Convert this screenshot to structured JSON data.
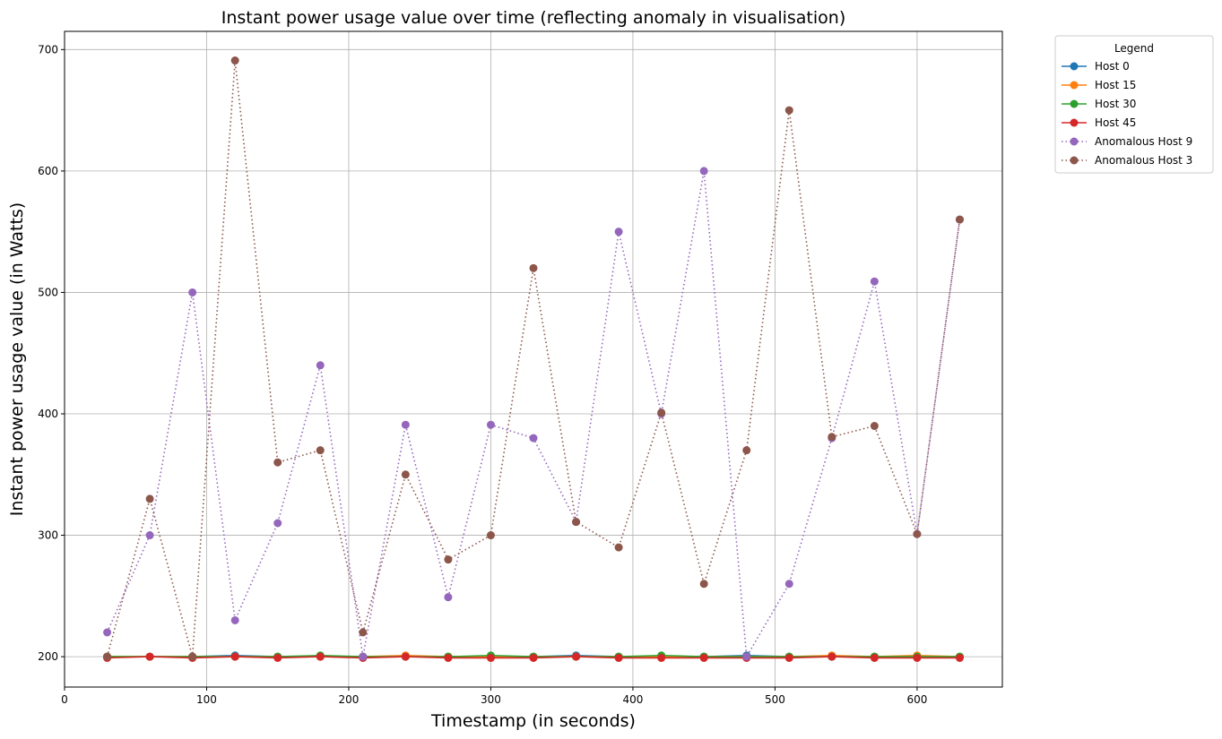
{
  "chart_data": {
    "type": "line",
    "title": "Instant power usage value over time (reflecting anomaly in visualisation)",
    "xlabel": "Timestamp (in seconds)",
    "ylabel": "Instant power usage value (in Watts)",
    "xlim": [
      0,
      660
    ],
    "ylim": [
      175,
      715
    ],
    "xticks": [
      0,
      100,
      200,
      300,
      400,
      500,
      600
    ],
    "yticks": [
      200,
      300,
      400,
      500,
      600,
      700
    ],
    "grid": true,
    "legend_title": "Legend",
    "legend_position": "outside-top-right",
    "x": [
      30,
      60,
      90,
      120,
      150,
      180,
      210,
      240,
      270,
      300,
      330,
      360,
      390,
      420,
      450,
      480,
      510,
      540,
      570,
      600,
      630
    ],
    "series": [
      {
        "name": "Host 0",
        "color": "#1f77b4",
        "style": "solid",
        "values": [
          200,
          200,
          200,
          201,
          200,
          200,
          200,
          200,
          200,
          200,
          200,
          201,
          200,
          200,
          200,
          201,
          200,
          200,
          200,
          200,
          200
        ]
      },
      {
        "name": "Host 15",
        "color": "#ff7f0e",
        "style": "solid",
        "values": [
          200,
          200,
          200,
          200,
          200,
          200,
          200,
          201,
          200,
          200,
          200,
          200,
          200,
          200,
          200,
          200,
          200,
          201,
          200,
          201,
          200
        ]
      },
      {
        "name": "Host 30",
        "color": "#2ca02c",
        "style": "solid",
        "values": [
          200,
          200,
          200,
          200,
          200,
          201,
          200,
          200,
          200,
          201,
          200,
          200,
          200,
          201,
          200,
          200,
          200,
          200,
          200,
          200,
          200
        ]
      },
      {
        "name": "Host 45",
        "color": "#d62728",
        "style": "solid",
        "values": [
          199,
          200,
          199,
          200,
          199,
          200,
          199,
          200,
          199,
          199,
          199,
          200,
          199,
          199,
          199,
          199,
          199,
          200,
          199,
          199,
          199
        ]
      },
      {
        "name": "Anomalous Host 9",
        "color": "#9467bd",
        "style": "dotted",
        "values": [
          220,
          300,
          500,
          230,
          310,
          440,
          200,
          391,
          249,
          391,
          380,
          311,
          550,
          400,
          600,
          200,
          260,
          380,
          509,
          301,
          560
        ]
      },
      {
        "name": "Anomalous Host 3",
        "color": "#8c564b",
        "style": "dotted",
        "values": [
          200,
          330,
          200,
          691,
          360,
          370,
          220,
          350,
          280,
          300,
          520,
          311,
          290,
          401,
          260,
          370,
          650,
          381,
          390,
          301,
          560
        ]
      }
    ]
  }
}
